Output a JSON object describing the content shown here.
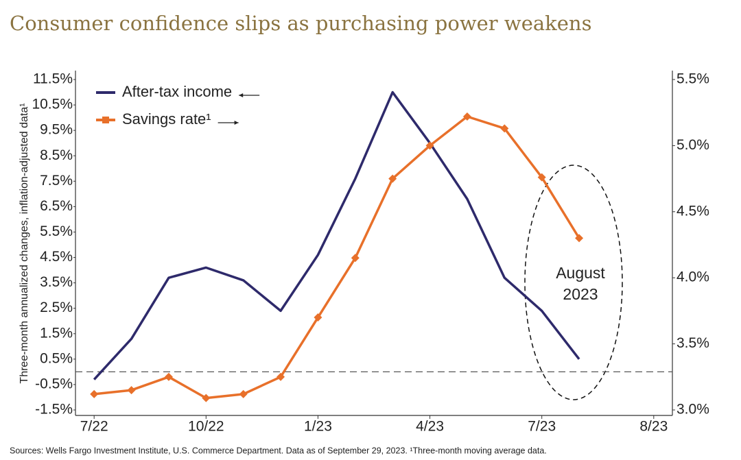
{
  "chart_data": {
    "type": "line",
    "title": "Consumer confidence slips as purchasing power weakens",
    "y_label": "Three-month annualized changes, inflation-adjusted data¹",
    "source": "Sources: Wells Fargo Investment Institute, U.S. Commerce Department. Data as of September 29, 2023. ¹Three-month moving average data.",
    "annotation": {
      "lines": [
        "August",
        "2023"
      ]
    },
    "categories": [
      "7/22",
      null,
      null,
      "10/22",
      null,
      null,
      "1/23",
      null,
      null,
      "4/23",
      null,
      null,
      "7/23",
      null,
      null,
      "8/23"
    ],
    "series": [
      {
        "name": "After-tax income",
        "color": "#2e2a6b",
        "axis": "y",
        "values": [
          -0.3,
          1.3,
          3.7,
          4.1,
          3.6,
          2.4,
          4.6,
          7.6,
          11.0,
          9.0,
          6.8,
          3.7,
          2.4,
          0.5,
          null,
          null
        ]
      },
      {
        "name": "Savings rate¹",
        "color": "#e8702a",
        "axis": "y2",
        "values": [
          3.12,
          3.15,
          3.25,
          3.09,
          3.12,
          3.25,
          3.7,
          4.15,
          4.75,
          5.0,
          5.22,
          5.13,
          4.76,
          4.3,
          null,
          null
        ]
      }
    ],
    "ylim": [
      -1.5,
      11.5
    ],
    "yticks": [
      {
        "value": -1.5,
        "label": "-1.5%"
      },
      {
        "value": -0.5,
        "label": "-0.5%"
      },
      {
        "value": 0.5,
        "label": "0.5%"
      },
      {
        "value": 1.5,
        "label": "1.5%"
      },
      {
        "value": 2.5,
        "label": "2.5%"
      },
      {
        "value": 3.5,
        "label": "3.5%"
      },
      {
        "value": 4.5,
        "label": "4.5%"
      },
      {
        "value": 5.5,
        "label": "5.5%"
      },
      {
        "value": 6.5,
        "label": "6.5%"
      },
      {
        "value": 7.5,
        "label": "7.5%"
      },
      {
        "value": 8.5,
        "label": "8.5%"
      },
      {
        "value": 9.5,
        "label": "9.5%"
      },
      {
        "value": 10.5,
        "label": "10.5%"
      },
      {
        "value": 11.5,
        "label": "11.5%"
      }
    ],
    "y2lim": [
      3.0,
      5.5
    ],
    "y2ticks": [
      {
        "value": 3.0,
        "label": "3.0%"
      },
      {
        "value": 3.5,
        "label": "3.5%"
      },
      {
        "value": 4.0,
        "label": "4.0%"
      },
      {
        "value": 4.5,
        "label": "4.5%"
      },
      {
        "value": 5.0,
        "label": "5.0%"
      },
      {
        "value": 5.5,
        "label": "5.5%"
      }
    ],
    "reference_line": 0,
    "legend": "upper left"
  }
}
